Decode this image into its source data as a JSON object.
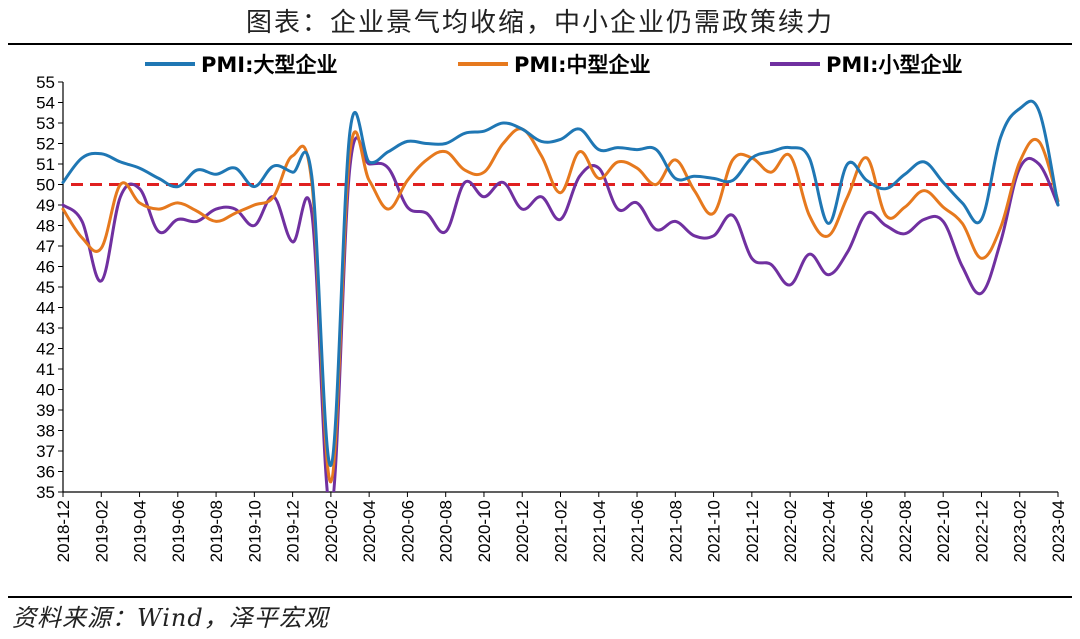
{
  "title": "图表：企业景气均收缩，中小企业仍需政策续力",
  "source": "资料来源：Wind，泽平宏观",
  "colors": {
    "large": "#1f77b4",
    "medium": "#e6791e",
    "small": "#7030a0",
    "reference": "#e02020"
  },
  "chart_data": {
    "type": "line",
    "title": "图表：企业景气均收缩，中小企业仍需政策续力",
    "xlabel": "",
    "ylabel": "",
    "ylim": [
      35,
      55
    ],
    "yticks": [
      35,
      36,
      37,
      38,
      39,
      40,
      41,
      42,
      43,
      44,
      45,
      46,
      47,
      48,
      49,
      50,
      51,
      52,
      53,
      54,
      55
    ],
    "x": [
      "2018-12",
      "2019-01",
      "2019-02",
      "2019-03",
      "2019-04",
      "2019-05",
      "2019-06",
      "2019-07",
      "2019-08",
      "2019-09",
      "2019-10",
      "2019-11",
      "2019-12",
      "2020-01",
      "2020-02",
      "2020-03",
      "2020-04",
      "2020-05",
      "2020-06",
      "2020-07",
      "2020-08",
      "2020-09",
      "2020-10",
      "2020-11",
      "2020-12",
      "2021-01",
      "2021-02",
      "2021-03",
      "2021-04",
      "2021-05",
      "2021-06",
      "2021-07",
      "2021-08",
      "2021-09",
      "2021-10",
      "2021-11",
      "2021-12",
      "2022-01",
      "2022-02",
      "2022-03",
      "2022-04",
      "2022-05",
      "2022-06",
      "2022-07",
      "2022-08",
      "2022-09",
      "2022-10",
      "2022-11",
      "2022-12",
      "2023-01",
      "2023-02",
      "2023-03",
      "2023-04"
    ],
    "xtick_labels": [
      "2018-12",
      "2019-02",
      "2019-04",
      "2019-06",
      "2019-08",
      "2019-10",
      "2019-12",
      "2020-02",
      "2020-04",
      "2020-06",
      "2020-08",
      "2020-10",
      "2020-12",
      "2021-02",
      "2021-04",
      "2021-06",
      "2021-08",
      "2021-10",
      "2021-12",
      "2022-02",
      "2022-04",
      "2022-06",
      "2022-08",
      "2022-10",
      "2022-12",
      "2023-02",
      "2023-04"
    ],
    "series": [
      {
        "name": "PMI:大型企业",
        "color": "#1f77b4",
        "values": [
          50.1,
          51.3,
          51.5,
          51.1,
          50.8,
          50.3,
          49.9,
          50.7,
          50.5,
          50.8,
          49.9,
          50.9,
          50.6,
          50.4,
          36.3,
          52.6,
          51.1,
          51.6,
          52.1,
          52.0,
          52.0,
          52.5,
          52.6,
          53.0,
          52.7,
          52.1,
          52.2,
          52.7,
          51.7,
          51.8,
          51.7,
          51.7,
          50.3,
          50.4,
          50.3,
          50.2,
          51.3,
          51.6,
          51.8,
          51.3,
          48.1,
          51.0,
          50.2,
          49.8,
          50.5,
          51.1,
          50.1,
          49.1,
          48.3,
          52.3,
          53.7,
          53.6,
          49.0
        ]
      },
      {
        "name": "PMI:中型企业",
        "color": "#e6791e",
        "values": [
          48.8,
          47.4,
          46.9,
          50.0,
          49.1,
          48.8,
          49.1,
          48.7,
          48.2,
          48.6,
          49.0,
          49.4,
          51.4,
          50.1,
          35.5,
          51.6,
          50.2,
          48.8,
          50.2,
          51.2,
          51.6,
          50.7,
          50.6,
          52.0,
          52.7,
          51.4,
          49.6,
          51.6,
          50.3,
          51.1,
          50.8,
          50.0,
          51.2,
          49.7,
          48.6,
          51.2,
          51.3,
          50.6,
          51.4,
          48.5,
          47.5,
          49.4,
          51.3,
          48.5,
          48.9,
          49.7,
          48.9,
          48.1,
          46.4,
          47.9,
          51.1,
          52.1,
          49.2
        ]
      },
      {
        "name": "PMI:小型企业",
        "color": "#7030a0",
        "values": [
          49.0,
          48.2,
          45.3,
          49.4,
          49.8,
          47.7,
          48.3,
          48.2,
          48.8,
          48.8,
          48.0,
          49.4,
          47.2,
          48.6,
          34.1,
          50.9,
          51.0,
          50.8,
          48.9,
          48.6,
          47.7,
          50.1,
          49.4,
          50.1,
          48.8,
          49.4,
          48.3,
          50.4,
          50.8,
          48.8,
          49.1,
          47.8,
          48.2,
          47.5,
          47.5,
          48.5,
          46.4,
          46.1,
          45.1,
          46.6,
          45.6,
          46.7,
          48.6,
          48.0,
          47.6,
          48.3,
          48.2,
          46.0,
          44.7,
          47.2,
          50.8,
          51.0,
          49.0
        ]
      }
    ],
    "reference_line": {
      "y": 50,
      "color": "#e02020",
      "style": "dashed"
    },
    "legend": {
      "position": "top",
      "entries": [
        "PMI:大型企业",
        "PMI:中型企业",
        "PMI:小型企业"
      ]
    },
    "grid": false
  }
}
